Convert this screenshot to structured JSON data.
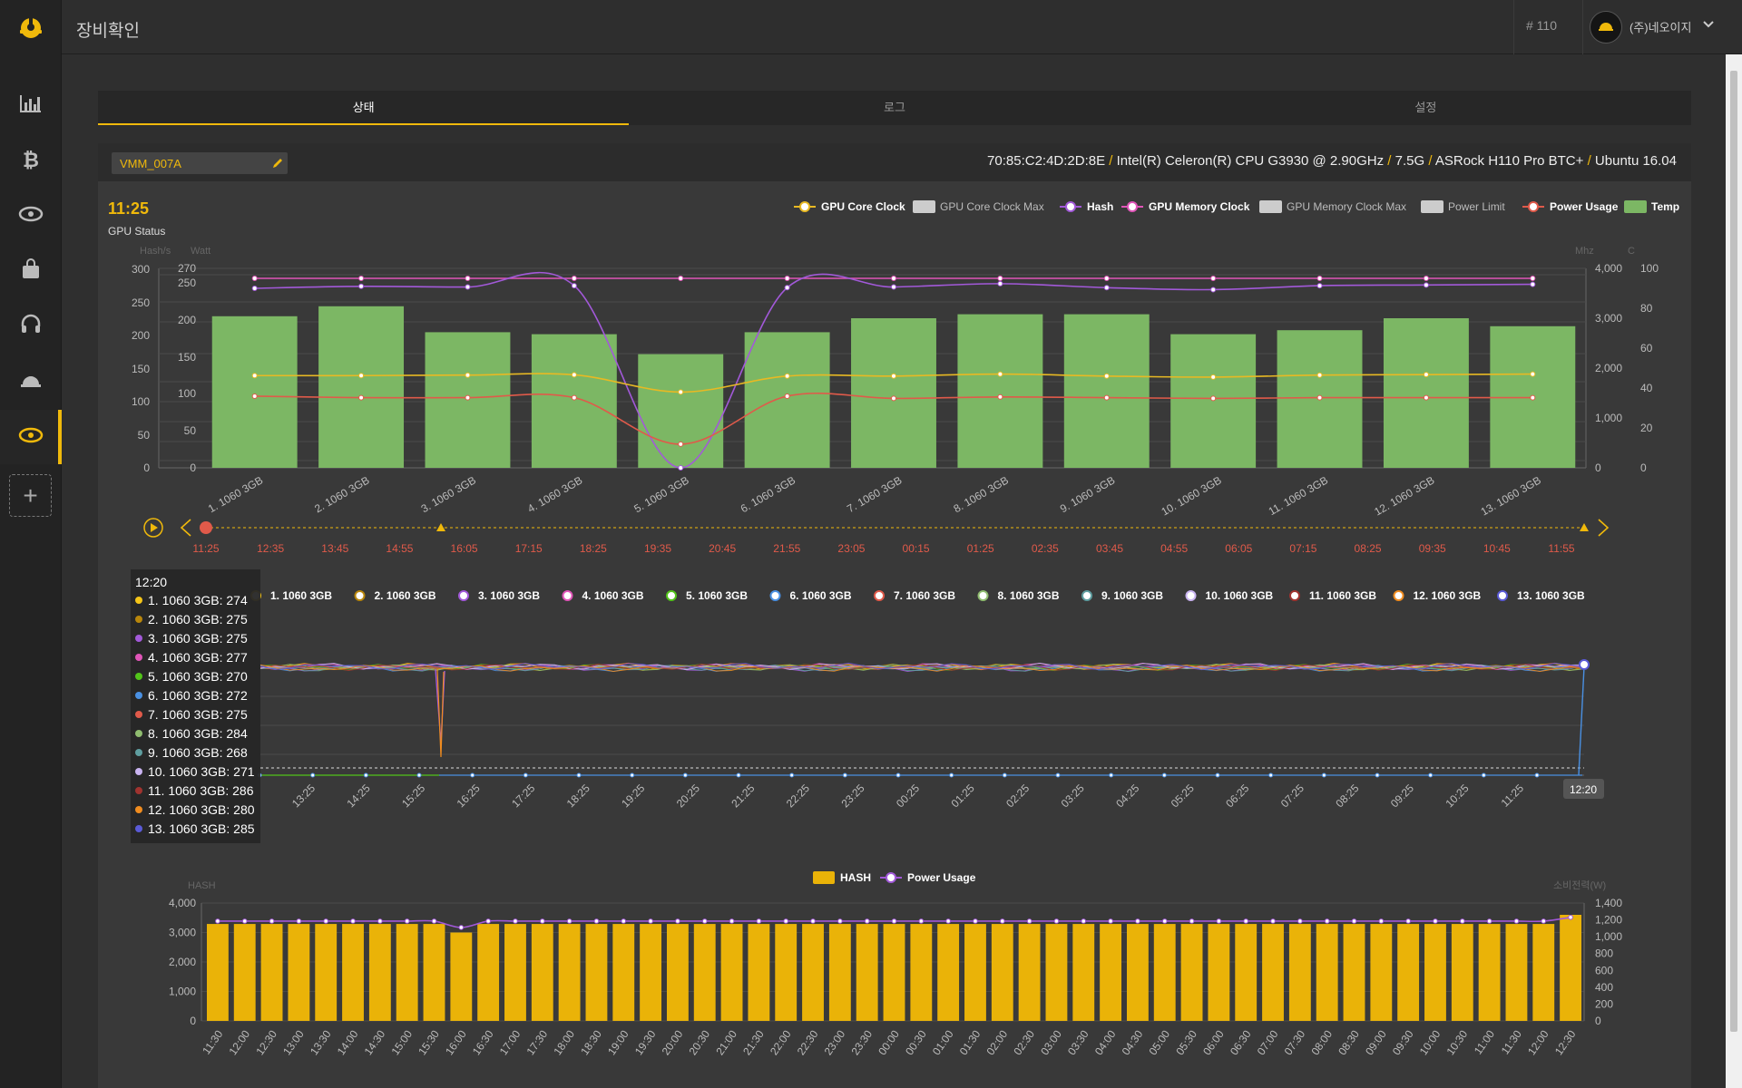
{
  "header": {
    "page_title": "장비확인",
    "device_number": "# 110",
    "company": "(주)네오이지"
  },
  "sidebar": {
    "items": [
      {
        "icon": "chart-icon"
      },
      {
        "icon": "bitcoin-icon"
      },
      {
        "icon": "gpu-card-icon"
      },
      {
        "icon": "shopping-bag-icon"
      },
      {
        "icon": "headset-icon"
      },
      {
        "icon": "helmet-icon"
      },
      {
        "icon": "gpu-card-icon",
        "active": true
      }
    ]
  },
  "tabs": [
    "상태",
    "로그",
    "설정"
  ],
  "active_tab": 0,
  "device": {
    "name": "VMM_007A",
    "mac": "70:85:C2:4D:2D:8E",
    "cpu": "Intel(R) Celeron(R) CPU G3930 @ 2.90GHz",
    "memory": "7.5G",
    "board": "ASRock H110 Pro BTC+",
    "os": "Ubuntu 16.04"
  },
  "colors": {
    "accent": "#f0b90b",
    "core_clock": "#e8b923",
    "hash": "#a259d9",
    "memory_clock": "#e055b8",
    "power_usage": "#e05a4a",
    "temp": "#7cb764",
    "hash_bar": "#eab308"
  },
  "chart_data": [
    {
      "type": "bar",
      "title": "11:25",
      "subtitle": "GPU Status",
      "axis_units": {
        "left_outer": "Hash/s",
        "left_inner": "Watt",
        "right_inner": "Mhz",
        "right_outer": "C"
      },
      "categories": [
        "1. 1060 3GB",
        "2. 1060 3GB",
        "3. 1060 3GB",
        "4. 1060 3GB",
        "5. 1060 3GB",
        "6. 1060 3GB",
        "7. 1060 3GB",
        "8. 1060 3GB",
        "9. 1060 3GB",
        "10. 1060 3GB",
        "11. 1060 3GB",
        "12. 1060 3GB",
        "13. 1060 3GB"
      ],
      "legend": [
        "GPU Core Clock",
        "GPU Core Clock Max",
        "Hash",
        "GPU Memory Clock",
        "GPU Memory Clock Max",
        "Power Limit",
        "Power Usage",
        "Temp"
      ],
      "left_outer_ticks": [
        "300",
        "250",
        "200",
        "150",
        "100",
        "50",
        "0"
      ],
      "left_inner_ticks": [
        "270",
        "250",
        "200",
        "150",
        "100",
        "50",
        "0"
      ],
      "right_inner_ticks": [
        "4,000",
        "3,000",
        "2,000",
        "1,000",
        "0"
      ],
      "right_outer_ticks": [
        "100",
        "80",
        "60",
        "40",
        "20",
        "0"
      ],
      "series": [
        {
          "name": "Temp",
          "axis": "C",
          "ylim": [
            0,
            100
          ],
          "values": [
            76,
            81,
            68,
            67,
            57,
            68,
            75,
            77,
            77,
            67,
            69,
            75,
            71
          ]
        },
        {
          "name": "Hash",
          "axis": "Hash/s",
          "ylim": [
            0,
            300
          ],
          "values": [
            270,
            273,
            272,
            274,
            0,
            271,
            272,
            277,
            271,
            268,
            274,
            275,
            276
          ]
        },
        {
          "name": "GPU Memory Clock",
          "axis": "Mhz",
          "ylim": [
            0,
            4000
          ],
          "values": [
            3800,
            3800,
            3800,
            3800,
            3800,
            3800,
            3800,
            3800,
            3800,
            3800,
            3800,
            3800,
            3800
          ]
        },
        {
          "name": "GPU Core Clock",
          "axis": "Mhz",
          "ylim": [
            0,
            4000
          ],
          "values": [
            1850,
            1850,
            1860,
            1865,
            1520,
            1840,
            1840,
            1880,
            1840,
            1820,
            1860,
            1870,
            1880
          ]
        },
        {
          "name": "Power Usage",
          "axis": "Watt",
          "ylim": [
            0,
            270
          ],
          "values": [
            97,
            95,
            95,
            95,
            32,
            97,
            94,
            96,
            95,
            94,
            95,
            95,
            95
          ]
        }
      ]
    },
    {
      "type": "line",
      "timeline_labels": [
        "11:25",
        "12:35",
        "13:45",
        "14:55",
        "16:05",
        "17:15",
        "18:25",
        "19:35",
        "20:45",
        "21:55",
        "23:05",
        "00:15",
        "01:25",
        "02:35",
        "03:45",
        "04:55",
        "06:05",
        "07:15",
        "08:25",
        "09:35",
        "10:45",
        "11:55"
      ],
      "x_ticks": [
        "13:25",
        "14:25",
        "15:25",
        "16:25",
        "17:25",
        "18:25",
        "19:25",
        "20:25",
        "21:25",
        "22:25",
        "23:25",
        "00:25",
        "01:25",
        "02:25",
        "03:25",
        "04:25",
        "05:25",
        "06:25",
        "07:25",
        "08:25",
        "09:25",
        "10:25",
        "11:25"
      ],
      "legend": [
        "1. 1060 3GB",
        "2. 1060 3GB",
        "3. 1060 3GB",
        "4. 1060 3GB",
        "5. 1060 3GB",
        "6. 1060 3GB",
        "7. 1060 3GB",
        "8. 1060 3GB",
        "9. 1060 3GB",
        "10. 1060 3GB",
        "11. 1060 3GB",
        "12. 1060 3GB",
        "13. 1060 3GB"
      ],
      "series_colors": [
        "#f5c518",
        "#b8860b",
        "#a259d9",
        "#e055b8",
        "#52c41a",
        "#4a90e2",
        "#e05a4a",
        "#8fbc6f",
        "#5f9ea0",
        "#c9b3f0",
        "#a0332f",
        "#f08c1f",
        "#5a5ad6"
      ],
      "tooltip": {
        "time": "12:20",
        "rows": [
          "1. 1060 3GB: 274",
          "2. 1060 3GB: 275",
          "3. 1060 3GB: 275",
          "4. 1060 3GB: 277",
          "5. 1060 3GB: 270",
          "6. 1060 3GB: 272",
          "7. 1060 3GB: 275",
          "8. 1060 3GB: 284",
          "9. 1060 3GB: 268",
          "10. 1060 3GB: 271",
          "11. 1060 3GB: 286",
          "12. 1060 3GB: 280",
          "13. 1060 3GB: 285"
        ]
      },
      "cursor_label": "12:20"
    },
    {
      "type": "bar",
      "legend": [
        "HASH",
        "Power Usage"
      ],
      "ylabel": "HASH",
      "y2label": "소비전력(W)",
      "y_ticks": [
        "4,000",
        "3,000",
        "2,000",
        "1,000",
        "0"
      ],
      "y2_ticks": [
        "1,400",
        "1,200",
        "1,000",
        "800",
        "600",
        "400",
        "200",
        "0"
      ],
      "ylim": [
        0,
        4000
      ],
      "y2lim": [
        0,
        1400
      ],
      "categories": [
        "11:30",
        "12:00",
        "12:30",
        "13:00",
        "13:30",
        "14:00",
        "14:30",
        "15:00",
        "15:30",
        "16:00",
        "16:30",
        "17:00",
        "17:30",
        "18:00",
        "18:30",
        "19:00",
        "19:30",
        "20:00",
        "20:30",
        "21:00",
        "21:30",
        "22:00",
        "22:30",
        "23:00",
        "23:30",
        "00:00",
        "00:30",
        "01:00",
        "01:30",
        "02:00",
        "02:30",
        "03:00",
        "03:30",
        "04:00",
        "04:30",
        "05:00",
        "05:30",
        "06:00",
        "06:30",
        "07:00",
        "07:30",
        "08:00",
        "08:30",
        "09:00",
        "09:30",
        "10:00",
        "10:30",
        "11:00",
        "11:30",
        "12:00",
        "12:30"
      ],
      "series": [
        {
          "name": "HASH",
          "values": [
            3290,
            3290,
            3290,
            3290,
            3290,
            3290,
            3290,
            3290,
            3290,
            3000,
            3290,
            3290,
            3290,
            3290,
            3290,
            3290,
            3290,
            3290,
            3290,
            3290,
            3290,
            3290,
            3290,
            3290,
            3290,
            3290,
            3290,
            3290,
            3290,
            3290,
            3290,
            3290,
            3290,
            3290,
            3290,
            3290,
            3290,
            3290,
            3290,
            3290,
            3290,
            3290,
            3290,
            3290,
            3290,
            3290,
            3290,
            3290,
            3290,
            3290,
            3600
          ]
        },
        {
          "name": "Power Usage",
          "values": [
            1185,
            1185,
            1185,
            1185,
            1185,
            1185,
            1185,
            1185,
            1185,
            1110,
            1185,
            1185,
            1185,
            1185,
            1185,
            1185,
            1185,
            1185,
            1185,
            1185,
            1185,
            1185,
            1185,
            1185,
            1185,
            1185,
            1185,
            1185,
            1185,
            1185,
            1185,
            1185,
            1185,
            1185,
            1185,
            1185,
            1185,
            1185,
            1185,
            1185,
            1185,
            1185,
            1185,
            1185,
            1185,
            1185,
            1185,
            1185,
            1185,
            1185,
            1230
          ]
        }
      ]
    }
  ]
}
